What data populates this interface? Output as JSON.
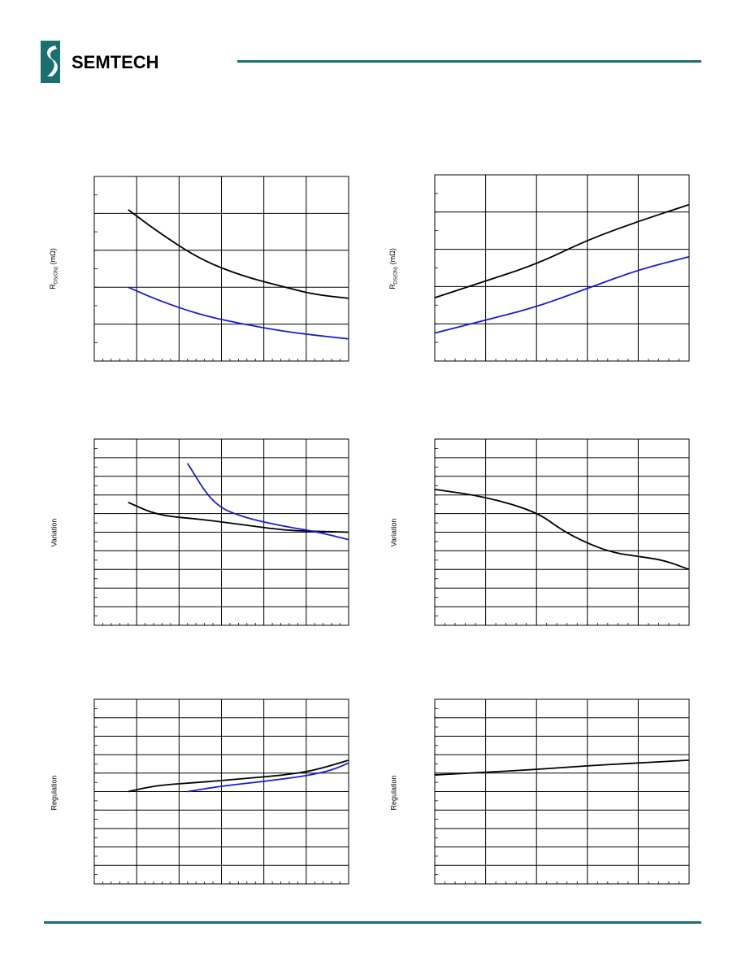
{
  "header": {
    "logo_text": "SEMTECH",
    "rule_color": "#1a6f6f"
  },
  "footer": {
    "rule_color": "#1a6f6f"
  },
  "colors": {
    "black_series": "#000000",
    "blue_series": "#1c1ccf",
    "grid": "#000000"
  },
  "chart_data": [
    {
      "type": "line",
      "ylabel_main": "R",
      "ylabel_sub": "DS(ON)",
      "ylabel_unit": " (mΩ)",
      "xlim": [
        0,
        6
      ],
      "ylim": [
        0,
        5
      ],
      "grid": true,
      "series": [
        {
          "color": "#000000",
          "x": [
            0.8,
            1.5,
            2.5,
            3.5,
            4.5,
            5.2,
            6
          ],
          "y": [
            4.1,
            3.5,
            2.75,
            2.3,
            2.0,
            1.8,
            1.7
          ]
        },
        {
          "color": "#1c1ccf",
          "x": [
            0.8,
            1.5,
            2.5,
            3.5,
            4.5,
            5.2,
            6
          ],
          "y": [
            2.0,
            1.65,
            1.25,
            1.0,
            0.8,
            0.7,
            0.6
          ]
        }
      ]
    },
    {
      "type": "line",
      "ylabel_main": "R",
      "ylabel_sub": "DS(ON)",
      "ylabel_unit": " (mΩ)",
      "xlim": [
        0,
        5
      ],
      "ylim": [
        0,
        5
      ],
      "grid": true,
      "series": [
        {
          "color": "#000000",
          "x": [
            0,
            1,
            2,
            3,
            4,
            5
          ],
          "y": [
            1.7,
            2.15,
            2.6,
            3.25,
            3.75,
            4.2
          ]
        },
        {
          "color": "#1c1ccf",
          "x": [
            0,
            1,
            2,
            3,
            4,
            5
          ],
          "y": [
            0.75,
            1.1,
            1.45,
            1.95,
            2.45,
            2.8
          ]
        }
      ]
    },
    {
      "type": "line",
      "ylabel_main": "Variation",
      "xlim": [
        0,
        6
      ],
      "ylim": [
        0,
        10
      ],
      "grid": true,
      "series": [
        {
          "color": "#000000",
          "x": [
            0.8,
            1.5,
            2.5,
            3.5,
            4.5,
            5.2,
            6
          ],
          "y": [
            6.6,
            5.9,
            5.7,
            5.4,
            5.1,
            5.05,
            5.0
          ]
        },
        {
          "color": "#1c1ccf",
          "x": [
            2.2,
            2.8,
            3.5,
            4.5,
            5.2,
            6
          ],
          "y": [
            8.7,
            6.5,
            5.8,
            5.3,
            5.05,
            4.6
          ]
        }
      ]
    },
    {
      "type": "line",
      "ylabel_main": "Variation",
      "xlim": [
        0,
        5
      ],
      "ylim": [
        0,
        10
      ],
      "grid": true,
      "series": [
        {
          "color": "#000000",
          "x": [
            0,
            1,
            2,
            2.5,
            3,
            3.5,
            4,
            4.5,
            5
          ],
          "y": [
            7.3,
            6.9,
            6.1,
            5.1,
            4.4,
            3.9,
            3.7,
            3.5,
            3.0
          ]
        }
      ]
    },
    {
      "type": "line",
      "ylabel_main": "Regulation",
      "xlim": [
        0,
        6
      ],
      "ylim": [
        0,
        10
      ],
      "grid": true,
      "series": [
        {
          "color": "#000000",
          "x": [
            0.8,
            1.5,
            2.5,
            3.5,
            4.5,
            5.2,
            6
          ],
          "y": [
            5.0,
            5.35,
            5.5,
            5.7,
            5.9,
            6.15,
            6.7
          ]
        },
        {
          "color": "#1c1ccf",
          "x": [
            2.2,
            3,
            4,
            5,
            5.6,
            6
          ],
          "y": [
            5.0,
            5.3,
            5.55,
            5.85,
            6.15,
            6.55
          ]
        }
      ]
    },
    {
      "type": "line",
      "ylabel_main": "Regulation",
      "xlim": [
        0,
        5
      ],
      "ylim": [
        0,
        10
      ],
      "grid": true,
      "series": [
        {
          "color": "#000000",
          "x": [
            0,
            1,
            2,
            3,
            4,
            5
          ],
          "y": [
            5.9,
            6.05,
            6.2,
            6.4,
            6.55,
            6.7
          ]
        }
      ]
    }
  ]
}
